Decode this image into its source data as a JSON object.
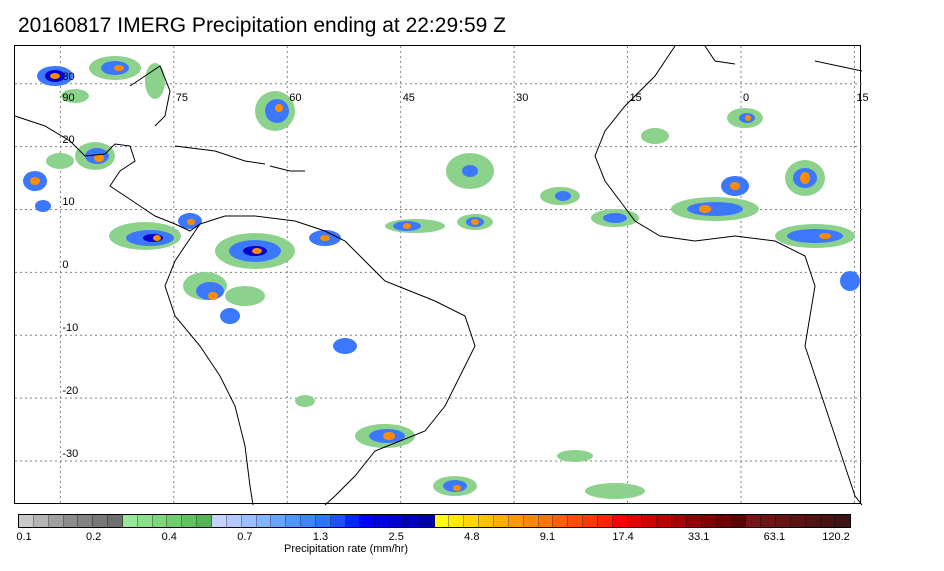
{
  "title": "20160817 IMERG Precipitation ending at 22:29:59 Z",
  "map": {
    "lon_range": [
      -96,
      16
    ],
    "lat_range": [
      -37,
      36
    ],
    "lon_ticks": [
      "-90",
      "-75",
      "-60",
      "-45",
      "-30",
      "-15",
      "0",
      "15"
    ],
    "lon_tick_labels": [
      "90",
      "75",
      "60",
      "45",
      "30",
      "15",
      "0",
      "15"
    ],
    "lat_ticks": [
      "30",
      "20",
      "10",
      "0",
      "-10",
      "-20",
      "-30"
    ],
    "lat_tick_labels": [
      "30",
      "20",
      "10",
      "0",
      "-10",
      "-20",
      "-30"
    ],
    "gridlines": true,
    "grid_color": "#808080",
    "coastline_color": "#000000"
  },
  "colorbar": {
    "colors": [
      "#c8c8c8",
      "#b4b4b4",
      "#a0a0a0",
      "#8c8c8c",
      "#828282",
      "#787878",
      "#6e6e6e",
      "#9be69b",
      "#8ce08c",
      "#7dd77d",
      "#6ecd6e",
      "#5fc35f",
      "#55b455",
      "#c8d2ff",
      "#b4c8ff",
      "#9bbeff",
      "#82b4ff",
      "#69a5ff",
      "#5096ff",
      "#3c87ff",
      "#2878ff",
      "#1e50ff",
      "#0028ff",
      "#0000ff",
      "#0000e6",
      "#0000d2",
      "#0000be",
      "#0000aa",
      "#ffff00",
      "#ffeb00",
      "#ffd700",
      "#ffc300",
      "#ffaf00",
      "#ff9b00",
      "#ff8700",
      "#ff7300",
      "#ff5f00",
      "#ff4b00",
      "#ff3700",
      "#ff2300",
      "#ff0000",
      "#e60000",
      "#d20000",
      "#be0000",
      "#aa0000",
      "#960000",
      "#820000",
      "#6e0000",
      "#5a0000",
      "#781414",
      "#6e1414",
      "#641414",
      "#5a1414",
      "#501414",
      "#461414",
      "#3c1414"
    ],
    "labels": [
      "0.1",
      "0.2",
      "0.4",
      "0.7",
      "1.3",
      "2.5",
      "4.8",
      "9.1",
      "17.4",
      "33.1",
      "63.1",
      "120.2"
    ],
    "unit_label": "Precipitation rate (mm/hr)"
  },
  "legend_colors": {
    "light": "#8cd28c",
    "moderate": "#3c78ff",
    "heavy": "#0000cd",
    "intense": "#ff8c00",
    "extreme": "#ff3c00"
  }
}
